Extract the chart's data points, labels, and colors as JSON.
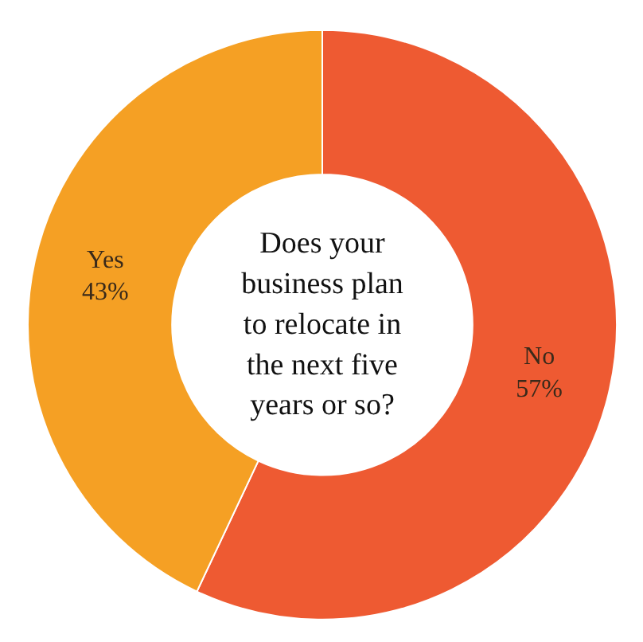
{
  "chart_data": {
    "type": "donut",
    "title": "Does your business plan to relocate in the next five years or so?",
    "categories": [
      "No",
      "Yes"
    ],
    "values": [
      57,
      43
    ],
    "colors": [
      "#ee5a32",
      "#f5a024"
    ],
    "value_labels": [
      "57%",
      "43%"
    ]
  }
}
